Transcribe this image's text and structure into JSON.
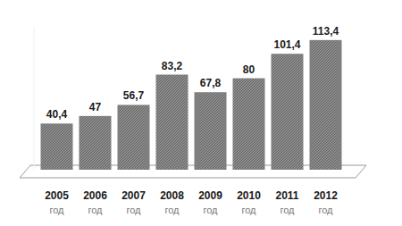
{
  "chart_data": {
    "type": "bar",
    "categories": [
      "2005 год",
      "2006 год",
      "2007 год",
      "2008 год",
      "2009 год",
      "2010 год",
      "2011 год",
      "2012 год"
    ],
    "values": [
      40.4,
      47,
      56.7,
      83.2,
      67.8,
      80,
      101.4,
      113.4
    ],
    "value_labels": [
      "40,4",
      "47",
      "56,7",
      "83,2",
      "67,8",
      "80",
      "101,4",
      "113,4"
    ],
    "color": "#8c8c8c",
    "ylim": [
      0,
      125
    ],
    "grid": false,
    "data_labels": true,
    "tick_labels": "x"
  }
}
